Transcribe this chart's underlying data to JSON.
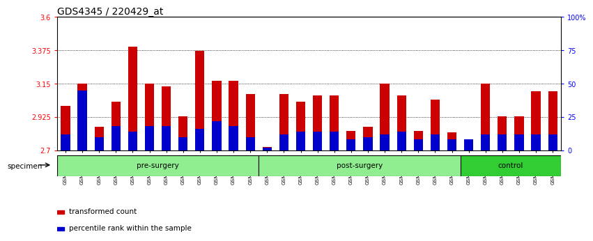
{
  "title": "GDS4345 / 220429_at",
  "categories": [
    "GSM842012",
    "GSM842013",
    "GSM842014",
    "GSM842015",
    "GSM842016",
    "GSM842017",
    "GSM842018",
    "GSM842019",
    "GSM842020",
    "GSM842021",
    "GSM842022",
    "GSM842023",
    "GSM842024",
    "GSM842025",
    "GSM842026",
    "GSM842027",
    "GSM842028",
    "GSM842029",
    "GSM842030",
    "GSM842031",
    "GSM842032",
    "GSM842033",
    "GSM842034",
    "GSM842035",
    "GSM842036",
    "GSM842037",
    "GSM842038",
    "GSM842039",
    "GSM842040",
    "GSM842041"
  ],
  "red_values": [
    3.0,
    3.15,
    2.86,
    3.03,
    3.4,
    3.15,
    3.13,
    2.93,
    3.37,
    3.17,
    3.17,
    3.08,
    2.72,
    3.08,
    3.03,
    3.07,
    3.07,
    2.83,
    2.86,
    3.15,
    3.07,
    2.83,
    3.04,
    2.82,
    2.73,
    3.15,
    2.93,
    2.93,
    3.1,
    3.1
  ],
  "blue_percentiles": [
    12,
    45,
    10,
    18,
    14,
    18,
    18,
    10,
    16,
    22,
    18,
    10,
    2,
    12,
    14,
    14,
    14,
    8,
    10,
    12,
    14,
    8,
    12,
    8,
    8,
    12,
    12,
    12,
    12,
    12
  ],
  "ymin": 2.7,
  "ymax": 3.6,
  "yticks": [
    2.7,
    2.925,
    3.15,
    3.375,
    3.6
  ],
  "ytick_labels": [
    "2.7",
    "2.925",
    "3.15",
    "3.375",
    "3.6"
  ],
  "right_yticks": [
    0,
    25,
    50,
    75,
    100
  ],
  "right_ytick_labels": [
    "0",
    "25",
    "50",
    "75",
    "100%"
  ],
  "red_color": "#CC0000",
  "blue_color": "#0000CC",
  "bar_width": 0.55,
  "specimen_label": "specimen",
  "legend_red": "transformed count",
  "legend_blue": "percentile rank within the sample",
  "title_fontsize": 10,
  "tick_fontsize": 7,
  "group_data": [
    {
      "start": 0,
      "end": 11,
      "label": "pre-surgery",
      "color": "#90EE90"
    },
    {
      "start": 12,
      "end": 23,
      "label": "post-surgery",
      "color": "#90EE90"
    },
    {
      "start": 24,
      "end": 29,
      "label": "control",
      "color": "#32CD32"
    }
  ]
}
